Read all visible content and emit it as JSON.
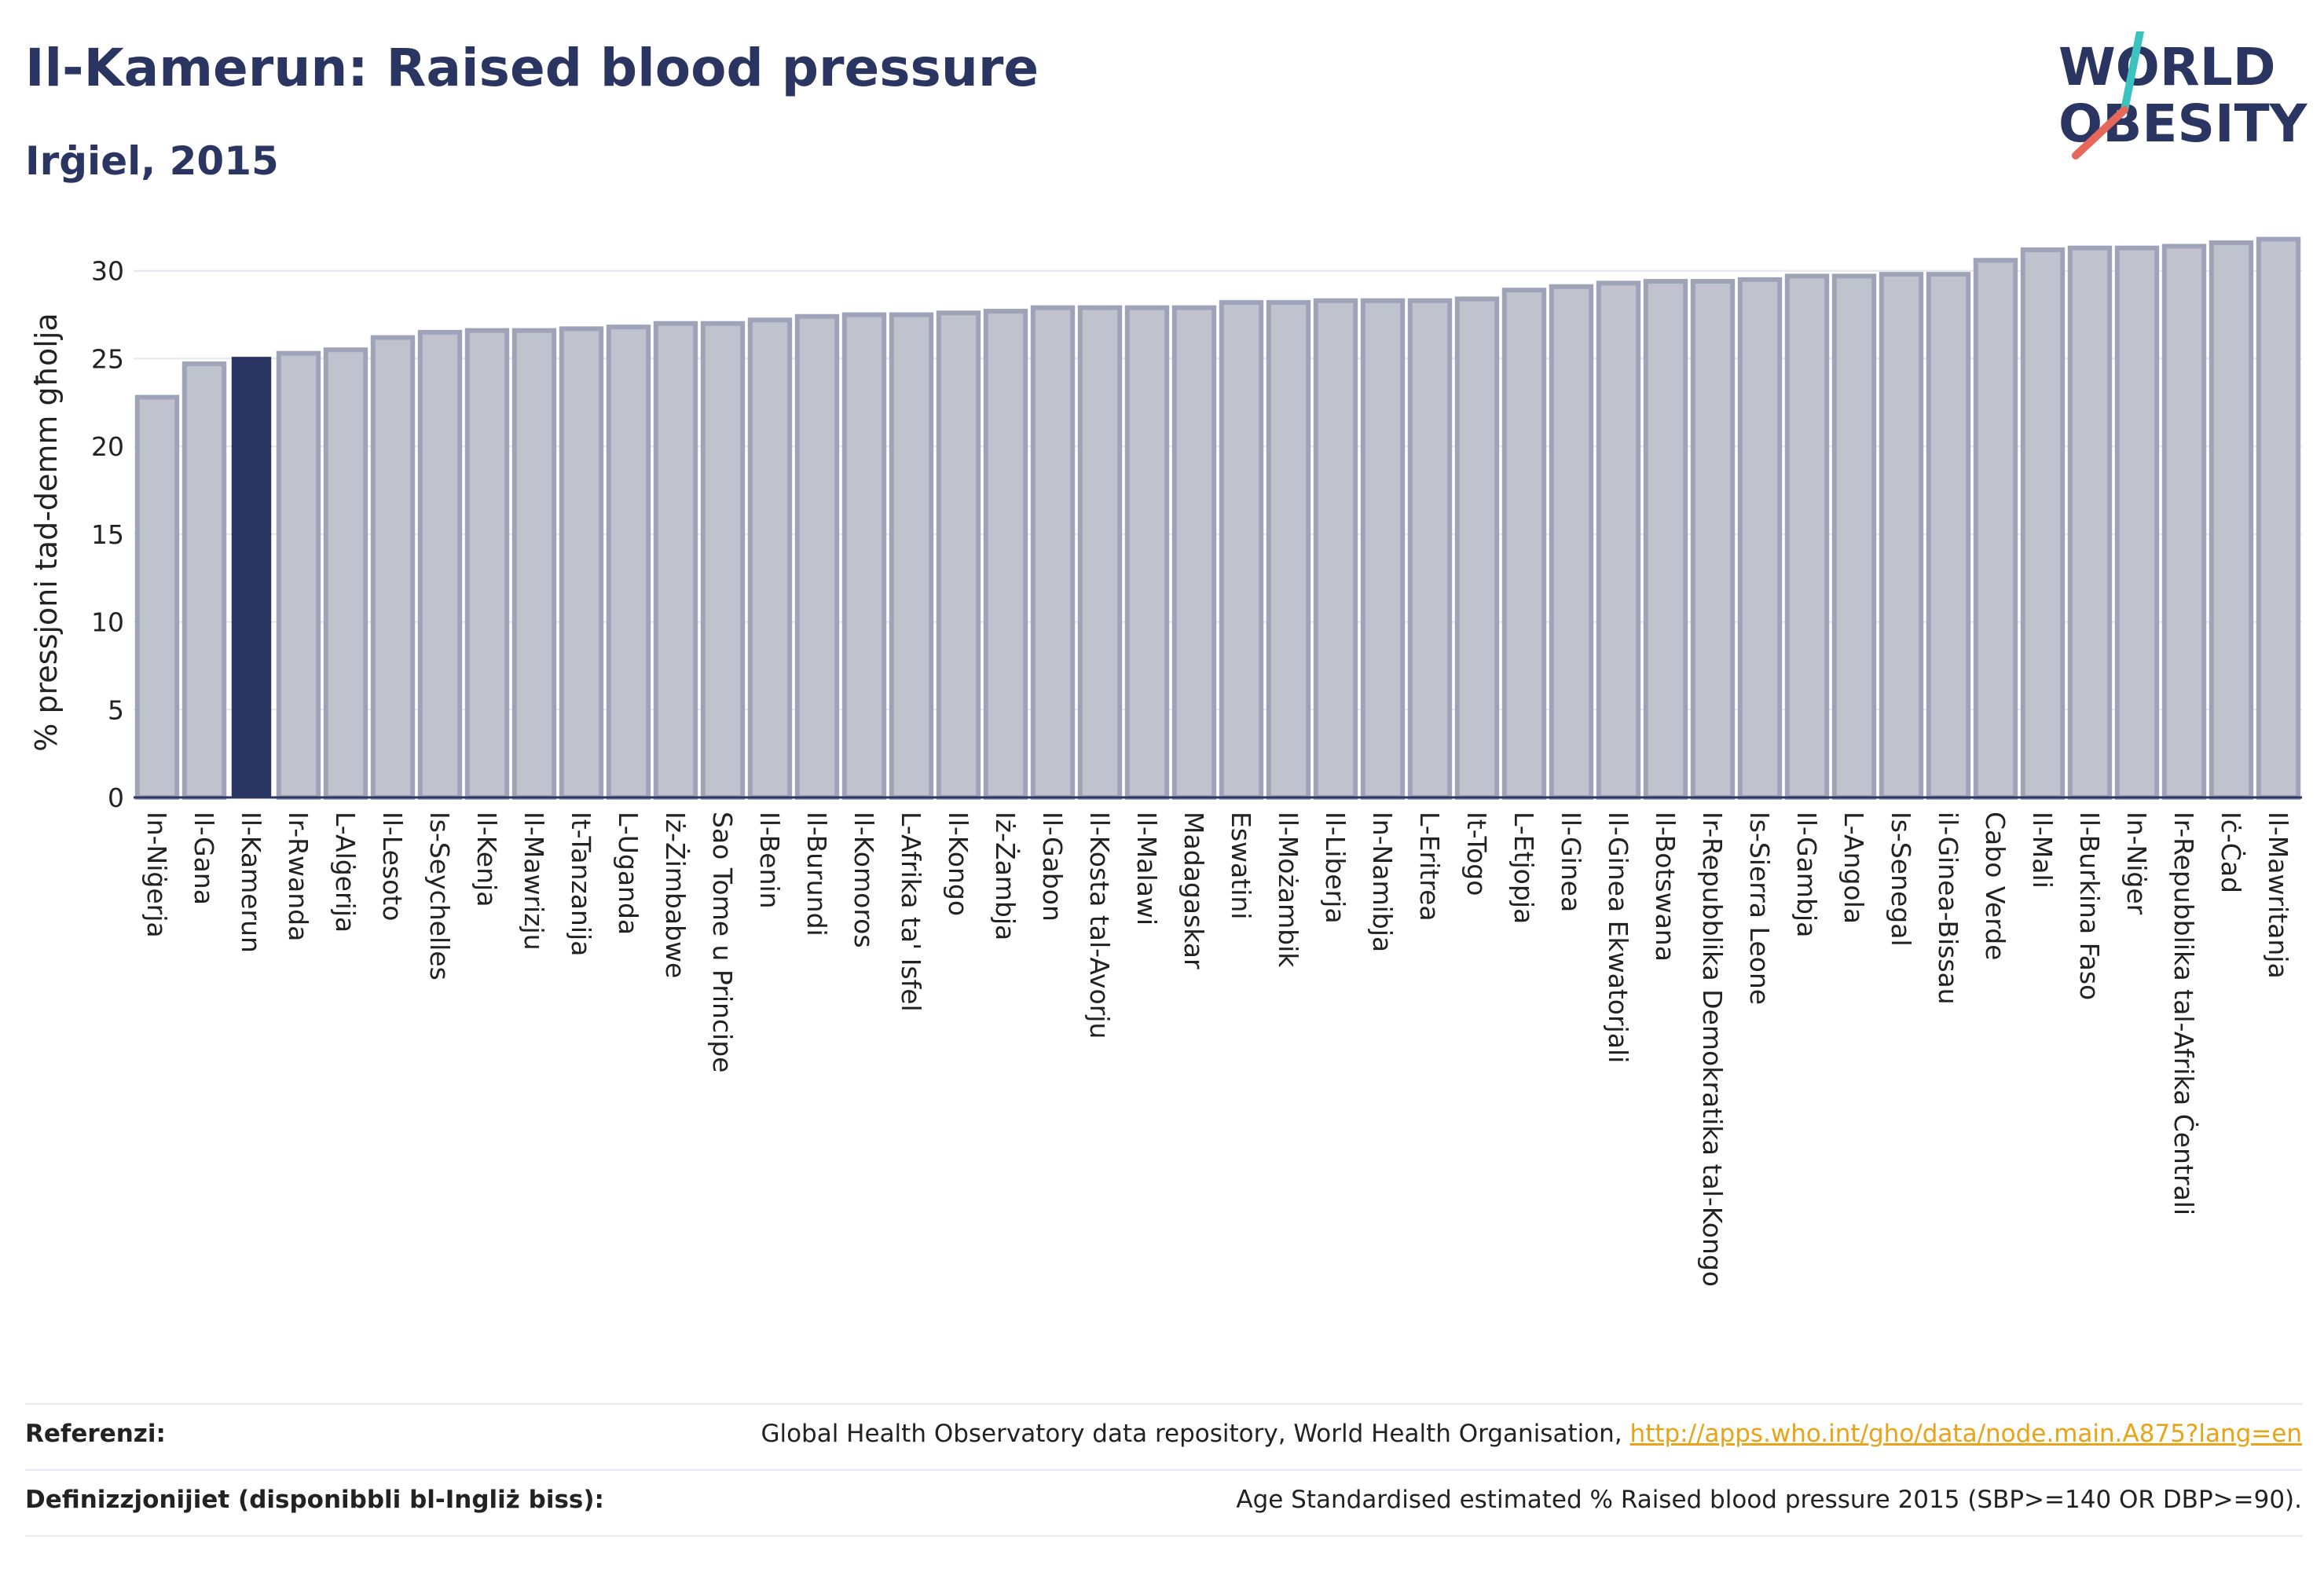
{
  "header": {
    "title": "Il-Kamerun: Raised blood pressure",
    "subtitle": "Irġiel, 2015"
  },
  "logo": {
    "line1": "WORLD",
    "line2": "OBESITY",
    "slash_color_top": "#3cc3c0",
    "slash_color_bottom": "#e8675b"
  },
  "colors": {
    "bar_fill": "#c0c3ce",
    "bar_stroke": "#9ea3b8",
    "highlight": "#2b3561",
    "text": "#2b3561"
  },
  "chart_data": {
    "type": "bar",
    "ylabel": "% pressjoni tad-demm għolja",
    "ylim": [
      0,
      32
    ],
    "yticks": [
      0,
      5,
      10,
      15,
      20,
      25,
      30
    ],
    "grid": true,
    "highlight_category": "Il-Kamerun",
    "categories": [
      "In-Niġerja",
      "Il-Gana",
      "Il-Kamerun",
      "Ir-Rwanda",
      "L-Alġerija",
      "Il-Lesoto",
      "Is-Seychelles",
      "Il-Kenja",
      "Il-Mawrizju",
      "It-Tanzanija",
      "L-Uganda",
      "Iż-Żimbabwe",
      "Sao Tome u Principe",
      "Il-Benin",
      "Il-Burundi",
      "Il-Komoros",
      "L-Afrika ta' Isfel",
      "Il-Kongo",
      "Iż-Żambja",
      "Il-Gabon",
      "Il-Kosta tal-Avorju",
      "Il-Malawi",
      "Madagaskar",
      "Eswatini",
      "Il-Możambik",
      "Il-Liberja",
      "In-Namibja",
      "L-Eritrea",
      "It-Togo",
      "L-Etjopja",
      "Il-Ginea",
      "Il-Ginea Ekwatorjali",
      "Il-Botswana",
      "Ir-Repubblika Demokratika tal-Kongo",
      "Is-Sierra Leone",
      "Il-Gambja",
      "L-Angola",
      "Is-Senegal",
      "il-Ginea-Bissau",
      "Cabo Verde",
      "Il-Mali",
      "Il-Burkina Faso",
      "In-Niġer",
      "Ir-Repubblika tal-Afrika Ċentrali",
      "Iċ-Ċad",
      "Il-Mawritanja"
    ],
    "values": [
      22.8,
      24.7,
      25.1,
      25.3,
      25.5,
      26.2,
      26.5,
      26.6,
      26.6,
      26.7,
      26.8,
      27.0,
      27.0,
      27.2,
      27.4,
      27.5,
      27.5,
      27.6,
      27.7,
      27.9,
      27.9,
      27.9,
      27.9,
      28.2,
      28.2,
      28.3,
      28.3,
      28.3,
      28.4,
      28.9,
      29.1,
      29.3,
      29.4,
      29.4,
      29.5,
      29.7,
      29.7,
      29.8,
      29.8,
      30.6,
      31.2,
      31.3,
      31.3,
      31.4,
      31.6,
      31.8
    ]
  },
  "footer": {
    "references_label": "Referenzi:",
    "references_text": "Global Health Observatory data repository, World Health Organisation, ",
    "references_link": "http://apps.who.int/gho/data/node.main.A875?lang=en",
    "definitions_label": "Definizzjonijiet (disponibbli bl-Ingliż biss):",
    "definitions_text": "Age Standardised estimated % Raised blood pressure 2015 (SBP>=140 OR DBP>=90)."
  }
}
